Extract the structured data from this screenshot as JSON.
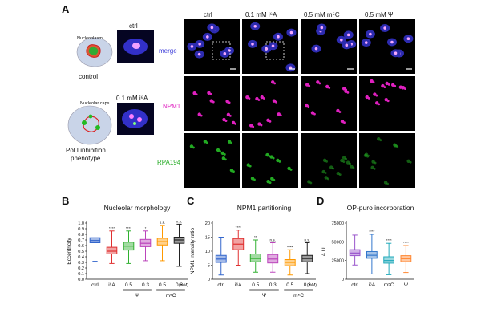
{
  "panel_a": {
    "letter": "A",
    "cartoon_labels": [
      "Nucleoplasm",
      "Nucleolar caps"
    ],
    "cartoon_captions": [
      "control",
      "Pol I inhibition",
      "phenotype"
    ],
    "inset_labels": [
      "ctrl",
      "0.1 mM i⁶A"
    ],
    "columns": [
      "ctrl",
      "0.1 mM i⁶A",
      "0.5 mM m⁵C",
      "0.5 mM Ψ"
    ],
    "rows": [
      "merge",
      "NPM1",
      "RPA194"
    ],
    "row_colors": [
      "#3b3bd9",
      "#e020c0",
      "#22aa22"
    ]
  },
  "chart_data": [
    {
      "panel": "B",
      "type": "box",
      "title": "Nucleolar morphology",
      "ylabel": "Eccentricity",
      "ylim": [
        0.0,
        1.0
      ],
      "yticks": [
        "0.0",
        "0.1",
        "0.2",
        "0.3",
        "0.4",
        "0.5",
        "0.6",
        "0.7",
        "0.8",
        "0.9",
        "1.0"
      ],
      "ytick_values": [
        0,
        0.1,
        0.2,
        0.3,
        0.4,
        0.5,
        0.6,
        0.7,
        0.8,
        0.9,
        1.0
      ],
      "categories": [
        "ctrl",
        "i⁶A",
        "0.5",
        "0.3",
        "0.5",
        "0.3"
      ],
      "group_labels": [
        "Ψ",
        "m⁵C"
      ],
      "unit": "(mM)",
      "significance": [
        "",
        "****",
        "****",
        "*",
        "n.s.",
        "n.s."
      ],
      "colors": [
        "#3366cc",
        "#e03030",
        "#30b030",
        "#bb44bb",
        "#ff9900",
        "#222222"
      ],
      "boxes": [
        {
          "min": 0.32,
          "q1": 0.65,
          "median": 0.69,
          "q3": 0.74,
          "max": 0.95
        },
        {
          "min": 0.28,
          "q1": 0.45,
          "median": 0.5,
          "q3": 0.57,
          "max": 0.86
        },
        {
          "min": 0.28,
          "q1": 0.52,
          "median": 0.59,
          "q3": 0.66,
          "max": 0.86
        },
        {
          "min": 0.33,
          "q1": 0.58,
          "median": 0.64,
          "q3": 0.71,
          "max": 0.86
        },
        {
          "min": 0.33,
          "q1": 0.61,
          "median": 0.67,
          "q3": 0.73,
          "max": 0.96
        },
        {
          "min": 0.23,
          "q1": 0.64,
          "median": 0.7,
          "q3": 0.75,
          "max": 0.98
        }
      ]
    },
    {
      "panel": "C",
      "type": "box",
      "title": "NPM1 partitioning",
      "ylabel": "NPM1 intensity ratio",
      "ylim": [
        0,
        20
      ],
      "yticks": [
        "0",
        "5",
        "10",
        "15",
        "20"
      ],
      "ytick_values": [
        0,
        5,
        10,
        15,
        20
      ],
      "categories": [
        "ctrl",
        "i⁶A",
        "0.5",
        "0.3",
        "0.5",
        "0.3"
      ],
      "group_labels": [
        "Ψ",
        "m⁵C"
      ],
      "unit": "(mM)",
      "significance": [
        "",
        "****",
        "**",
        "n.s.",
        "****",
        "n.s."
      ],
      "colors": [
        "#3366cc",
        "#e03030",
        "#30b030",
        "#bb44bb",
        "#ff9900",
        "#222222"
      ],
      "boxes": [
        {
          "min": 1.5,
          "q1": 6.0,
          "median": 7.2,
          "q3": 8.5,
          "max": 15.0
        },
        {
          "min": 5.0,
          "q1": 10.5,
          "median": 12.5,
          "q3": 14.5,
          "max": 17.5
        },
        {
          "min": 2.5,
          "q1": 6.2,
          "median": 7.4,
          "q3": 9.0,
          "max": 14.0
        },
        {
          "min": 2.5,
          "q1": 5.8,
          "median": 7.2,
          "q3": 8.8,
          "max": 13.0
        },
        {
          "min": 1.5,
          "q1": 4.8,
          "median": 6.0,
          "q3": 7.0,
          "max": 10.5
        },
        {
          "min": 2.0,
          "q1": 6.2,
          "median": 7.4,
          "q3": 8.5,
          "max": 13.0
        }
      ]
    },
    {
      "panel": "D",
      "type": "box",
      "title": "OP-puro incorporation",
      "ylabel": "A.U.",
      "ylim": [
        0,
        75000
      ],
      "yticks": [
        "0",
        "25000",
        "50000",
        "75000"
      ],
      "ytick_values": [
        0,
        25000,
        50000,
        75000
      ],
      "categories": [
        "ctrl",
        "i⁶A",
        "m⁵C",
        "Ψ"
      ],
      "significance": [
        "",
        "****",
        "****",
        "****"
      ],
      "colors": [
        "#9955cc",
        "#3377cc",
        "#22aabb",
        "#ff8833"
      ],
      "boxes": [
        {
          "min": 19000,
          "q1": 31500,
          "median": 35000,
          "q3": 39500,
          "max": 59000
        },
        {
          "min": 7000,
          "q1": 28000,
          "median": 32000,
          "q3": 37000,
          "max": 60000
        },
        {
          "min": 6000,
          "q1": 21500,
          "median": 25000,
          "q3": 30000,
          "max": 48000
        },
        {
          "min": 9000,
          "q1": 23500,
          "median": 27500,
          "q3": 31500,
          "max": 45000
        }
      ]
    }
  ]
}
